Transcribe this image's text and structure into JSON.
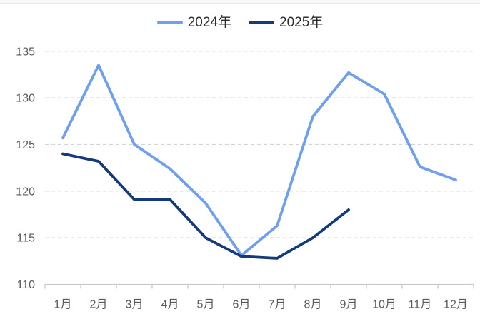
{
  "legend": {
    "position": "top-center",
    "items": [
      {
        "label": "2024年",
        "color": "#6fa0eb"
      },
      {
        "label": "2025年",
        "color": "#143a78"
      }
    ]
  },
  "chart_data": {
    "type": "line",
    "title": "",
    "xlabel": "",
    "ylabel": "",
    "categories": [
      "1月",
      "2月",
      "3月",
      "4月",
      "5月",
      "6月",
      "7月",
      "8月",
      "9月",
      "10月",
      "11月",
      "12月"
    ],
    "series": [
      {
        "name": "2024年",
        "color": "#6fa0eb",
        "values": [
          125.7,
          133.5,
          125.0,
          122.4,
          118.7,
          113.1,
          116.3,
          128.0,
          132.7,
          130.4,
          122.6,
          121.2
        ]
      },
      {
        "name": "2025年",
        "color": "#143a78",
        "values": [
          124.0,
          123.2,
          119.1,
          119.1,
          115.0,
          113.0,
          112.8,
          115.0,
          118.0
        ]
      }
    ],
    "ylim": [
      110,
      137
    ],
    "yticks": [
      110,
      115,
      120,
      125,
      130,
      135
    ],
    "grid": "horizontal-dashed",
    "axis_line_color": "#c9c9c9",
    "gridline_color": "#d4d4d4",
    "legend_position": "top-center"
  }
}
